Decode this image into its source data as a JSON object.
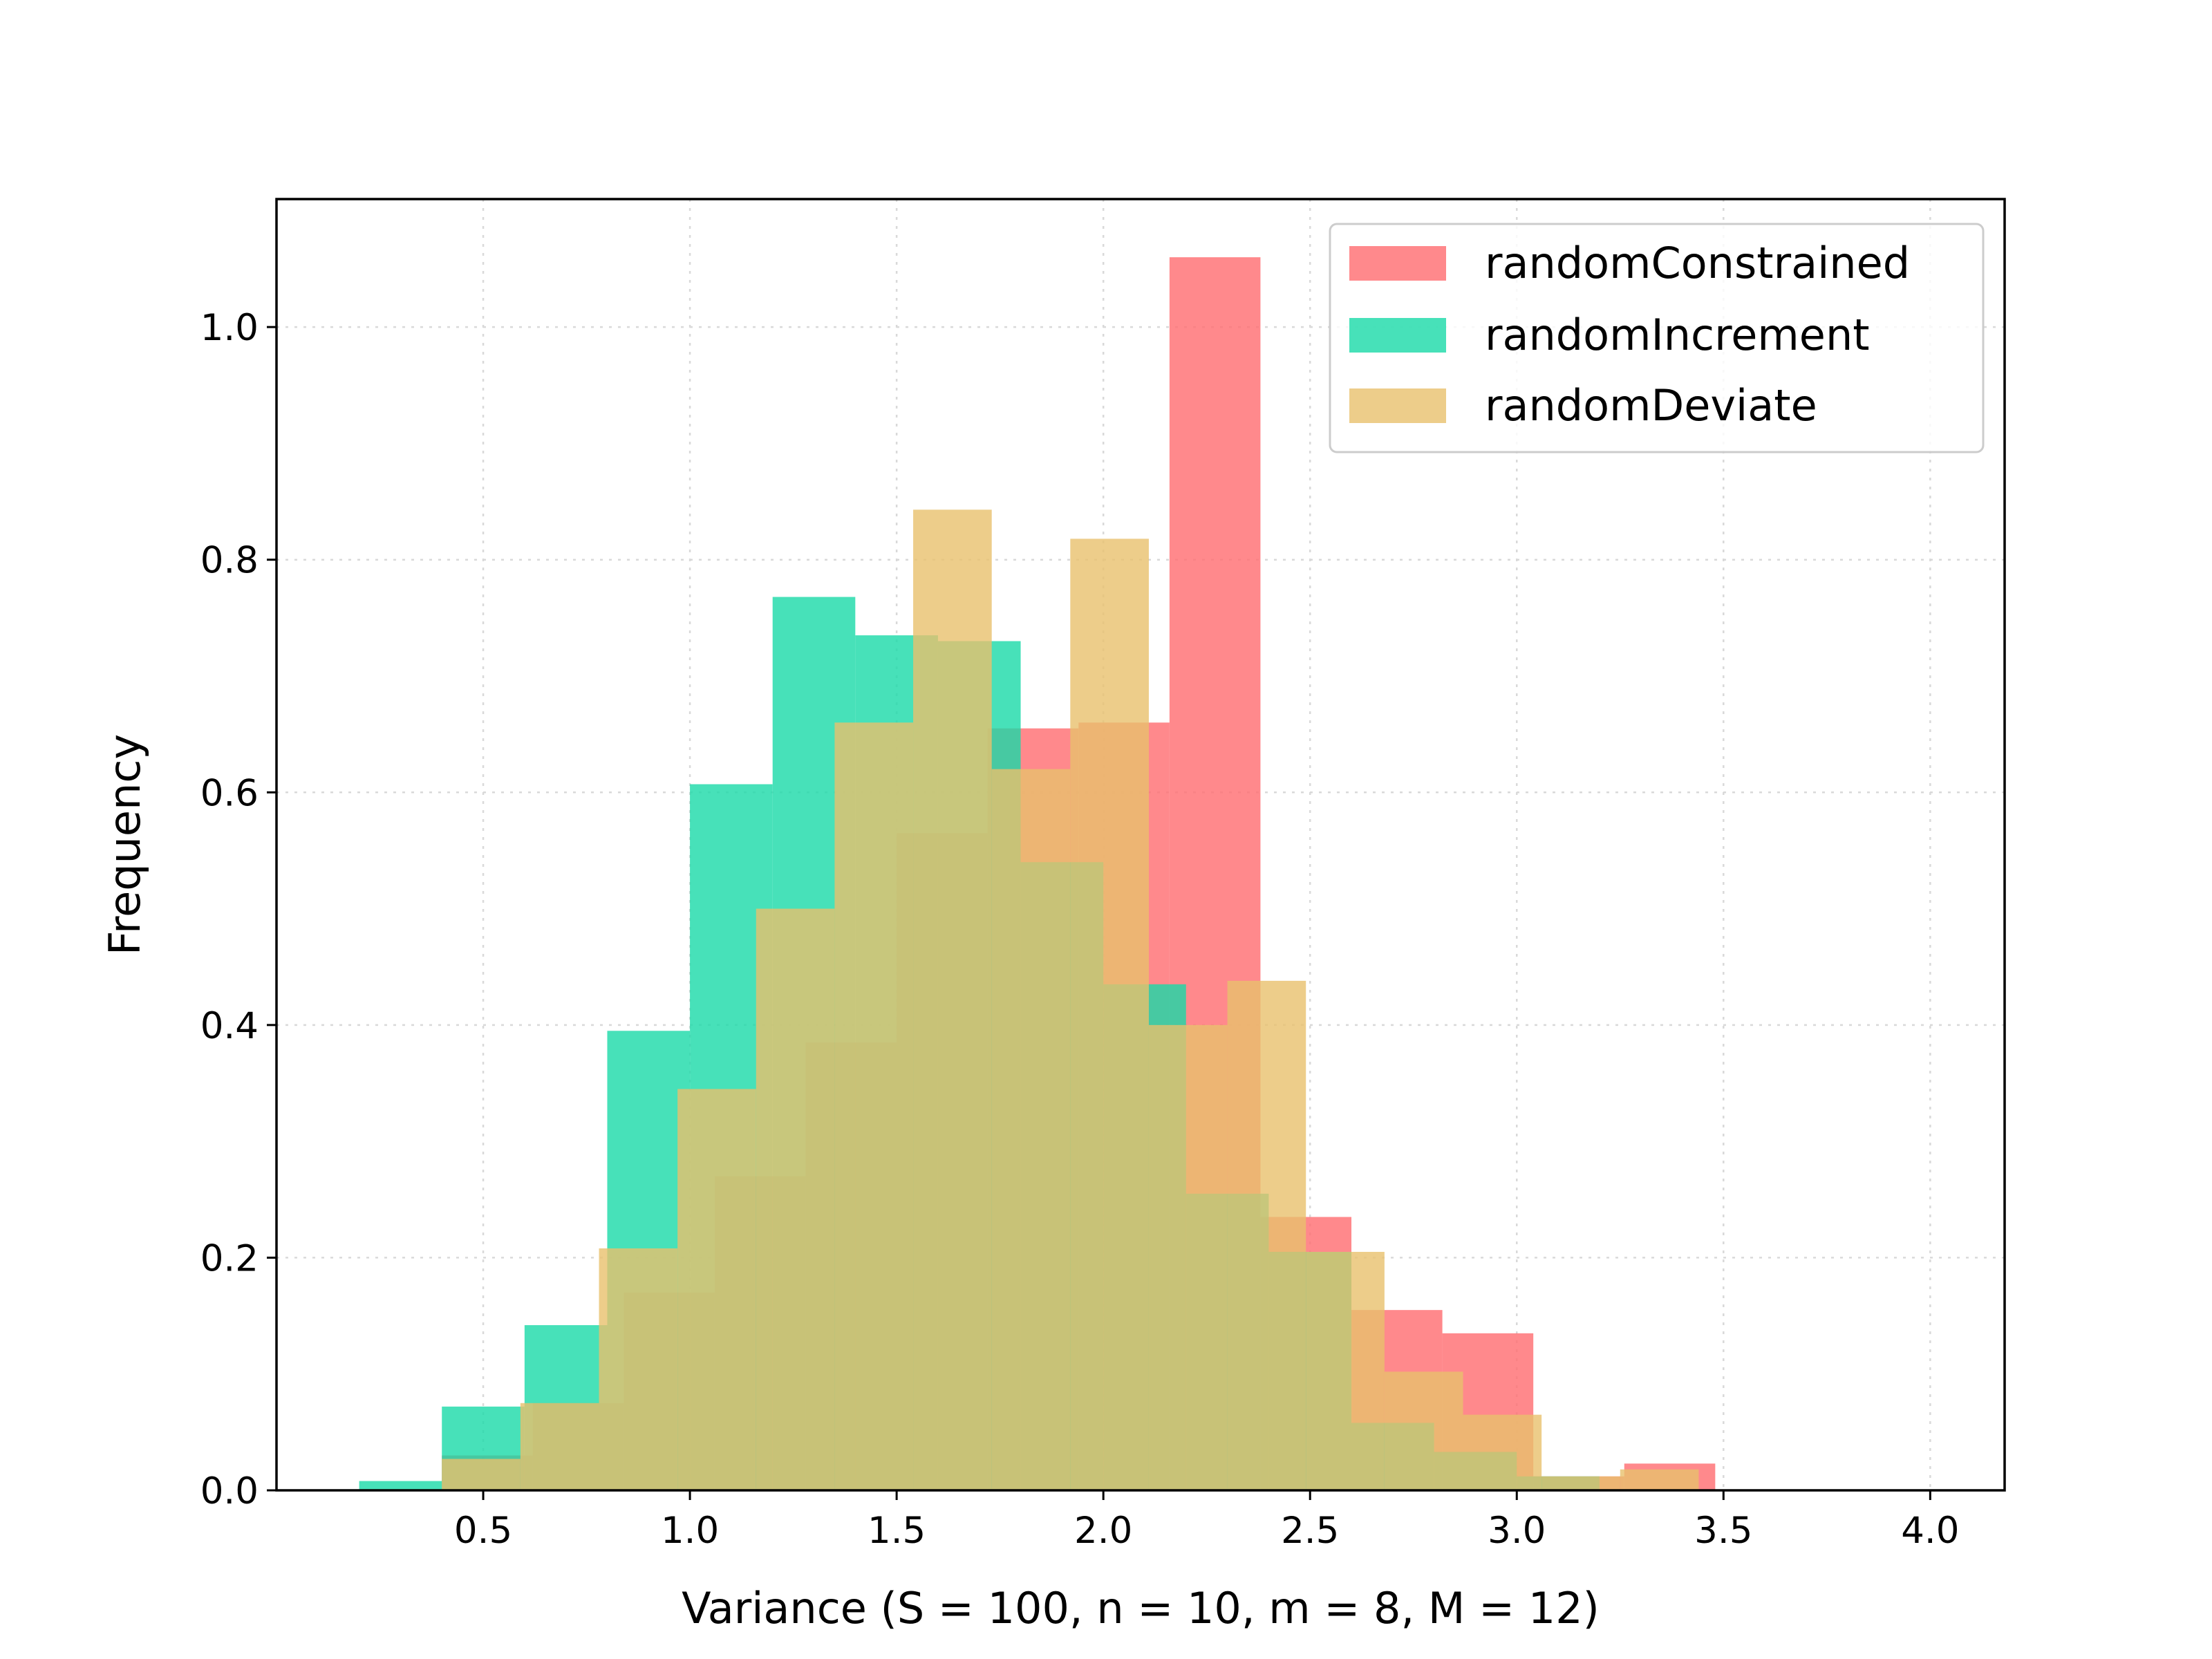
{
  "chart_data": {
    "type": "bar",
    "histogram": true,
    "xlabel": "Variance (S = 100, n = 10, m = 8, M = 12)",
    "ylabel": "Frequency",
    "xlim": [
      0.0,
      4.18
    ],
    "ylim": [
      0.0,
      1.11
    ],
    "xticks": [
      "0.5",
      "1.0",
      "1.5",
      "2.0",
      "2.5",
      "3.0",
      "3.5",
      "4.0"
    ],
    "yticks": [
      "0.0",
      "0.2",
      "0.4",
      "0.6",
      "0.8",
      "1.0"
    ],
    "grid": true,
    "legend_position": "top-right",
    "series": [
      {
        "name": "randomConstrained",
        "color": "#ff6b6f",
        "bins": [
          {
            "x0": 0.4,
            "x1": 0.62,
            "value": 0.03
          },
          {
            "x0": 0.62,
            "x1": 0.84,
            "value": 0.075
          },
          {
            "x0": 0.84,
            "x1": 1.06,
            "value": 0.17
          },
          {
            "x0": 1.06,
            "x1": 1.28,
            "value": 0.27
          },
          {
            "x0": 1.28,
            "x1": 1.5,
            "value": 0.385
          },
          {
            "x0": 1.5,
            "x1": 1.72,
            "value": 0.565
          },
          {
            "x0": 1.72,
            "x1": 1.94,
            "value": 0.655
          },
          {
            "x0": 1.94,
            "x1": 2.16,
            "value": 0.66
          },
          {
            "x0": 2.16,
            "x1": 2.38,
            "value": 1.06
          },
          {
            "x0": 2.38,
            "x1": 2.6,
            "value": 0.235
          },
          {
            "x0": 2.6,
            "x1": 2.82,
            "value": 0.155
          },
          {
            "x0": 2.82,
            "x1": 3.04,
            "value": 0.135
          },
          {
            "x0": 3.04,
            "x1": 3.26,
            "value": 0.012
          },
          {
            "x0": 3.26,
            "x1": 3.48,
            "value": 0.023
          }
        ]
      },
      {
        "name": "randomIncrement",
        "color": "#19d9a7",
        "bins": [
          {
            "x0": 0.2,
            "x1": 0.4,
            "value": 0.008
          },
          {
            "x0": 0.4,
            "x1": 0.6,
            "value": 0.072
          },
          {
            "x0": 0.6,
            "x1": 0.8,
            "value": 0.142
          },
          {
            "x0": 0.8,
            "x1": 1.0,
            "value": 0.395
          },
          {
            "x0": 1.0,
            "x1": 1.2,
            "value": 0.607
          },
          {
            "x0": 1.2,
            "x1": 1.4,
            "value": 0.768
          },
          {
            "x0": 1.4,
            "x1": 1.6,
            "value": 0.735
          },
          {
            "x0": 1.6,
            "x1": 1.8,
            "value": 0.73
          },
          {
            "x0": 1.8,
            "x1": 2.0,
            "value": 0.54
          },
          {
            "x0": 2.0,
            "x1": 2.2,
            "value": 0.435
          },
          {
            "x0": 2.2,
            "x1": 2.4,
            "value": 0.255
          },
          {
            "x0": 2.4,
            "x1": 2.6,
            "value": 0.205
          },
          {
            "x0": 2.6,
            "x1": 2.8,
            "value": 0.058
          },
          {
            "x0": 2.8,
            "x1": 3.0,
            "value": 0.033
          },
          {
            "x0": 3.0,
            "x1": 3.2,
            "value": 0.012
          }
        ]
      },
      {
        "name": "randomDeviate",
        "color": "#e8c16d",
        "bins": [
          {
            "x0": 0.4,
            "x1": 0.59,
            "value": 0.027
          },
          {
            "x0": 0.59,
            "x1": 0.78,
            "value": 0.075
          },
          {
            "x0": 0.78,
            "x1": 0.97,
            "value": 0.208
          },
          {
            "x0": 0.97,
            "x1": 1.16,
            "value": 0.345
          },
          {
            "x0": 1.16,
            "x1": 1.35,
            "value": 0.5
          },
          {
            "x0": 1.35,
            "x1": 1.54,
            "value": 0.66
          },
          {
            "x0": 1.54,
            "x1": 1.73,
            "value": 0.843
          },
          {
            "x0": 1.73,
            "x1": 1.92,
            "value": 0.62
          },
          {
            "x0": 1.92,
            "x1": 2.11,
            "value": 0.818
          },
          {
            "x0": 2.11,
            "x1": 2.3,
            "value": 0.4
          },
          {
            "x0": 2.3,
            "x1": 2.49,
            "value": 0.438
          },
          {
            "x0": 2.49,
            "x1": 2.68,
            "value": 0.205
          },
          {
            "x0": 2.68,
            "x1": 2.87,
            "value": 0.102
          },
          {
            "x0": 2.87,
            "x1": 3.06,
            "value": 0.065
          },
          {
            "x0": 3.06,
            "x1": 3.25,
            "value": 0.012
          },
          {
            "x0": 3.25,
            "x1": 3.44,
            "value": 0.018
          }
        ]
      }
    ]
  }
}
